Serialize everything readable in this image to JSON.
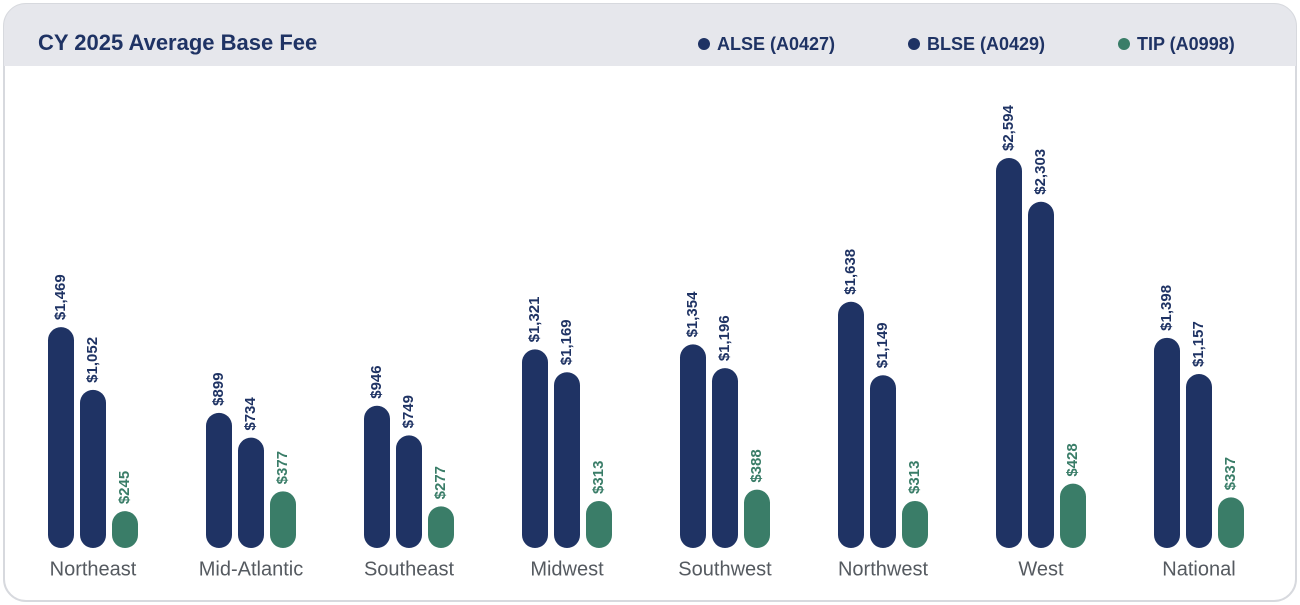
{
  "chart_data": {
    "type": "bar",
    "title": "CY 2025 Average Base Fee",
    "categories": [
      "Northeast",
      "Mid-Atlantic",
      "Southeast",
      "Midwest",
      "Southwest",
      "Northwest",
      "West",
      "National"
    ],
    "series": [
      {
        "name": "ALSE (A0427)",
        "color": "#1f3364",
        "values": [
          1469,
          899,
          946,
          1321,
          1354,
          1638,
          2594,
          1398
        ],
        "value_labels": [
          "$1,469",
          "$899",
          "$946",
          "$1,321",
          "$1,354",
          "$1,638",
          "$2,594",
          "$1,398"
        ]
      },
      {
        "name": "BLSE (A0429)",
        "color": "#1f3364",
        "values": [
          1052,
          734,
          749,
          1169,
          1196,
          1149,
          2303,
          1157
        ],
        "value_labels": [
          "$1,052",
          "$734",
          "$749",
          "$1,169",
          "$1,196",
          "$1,149",
          "$2,303",
          "$1,157"
        ]
      },
      {
        "name": "TIP (A0998)",
        "color": "#3a7d68",
        "values": [
          245,
          377,
          277,
          313,
          388,
          313,
          428,
          337
        ],
        "value_labels": [
          "$245",
          "$377",
          "$277",
          "$313",
          "$388",
          "$313",
          "$428",
          "$337"
        ]
      }
    ],
    "legend": "top-right"
  }
}
